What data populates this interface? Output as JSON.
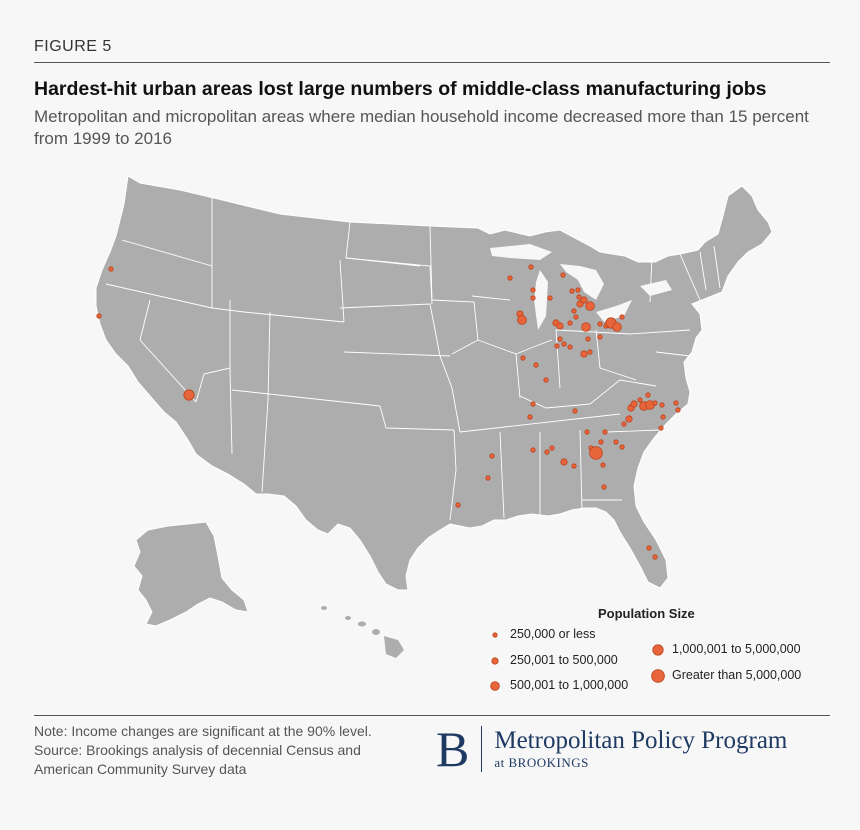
{
  "figure_label": "FIGURE 5",
  "title": "Hardest-hit urban areas lost large numbers of middle-class manufacturing jobs",
  "subtitle": "Metropolitan and micropolitan areas where median household income decreased more than 15 percent from 1999 to 2016",
  "colors": {
    "land": "#adadad",
    "borders": "#ffffff",
    "dot_fill": "#e8643a",
    "dot_stroke": "#b8441f",
    "brand": "#1e3a63"
  },
  "legend": {
    "title": "Population Size",
    "items": [
      {
        "label": "250,000 or less",
        "size_class": 1
      },
      {
        "label": "250,001 to 500,000",
        "size_class": 2
      },
      {
        "label": "500,001 to 1,000,000",
        "size_class": 3
      },
      {
        "label": "1,000,001 to 5,000,000",
        "size_class": 4
      },
      {
        "label": "Greater than 5,000,000",
        "size_class": 5
      }
    ]
  },
  "notes": {
    "note": "Note: Income changes are significant at the 90% level.",
    "source": "Source: Brookings analysis of decennial Census and American Community Survey data"
  },
  "brand": {
    "letter": "B",
    "name": "Metropolitan Policy Program",
    "sub": "at BROOKINGS"
  }
}
